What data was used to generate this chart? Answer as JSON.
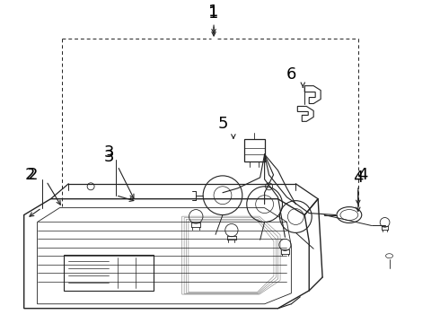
{
  "background_color": "#ffffff",
  "line_color": "#222222",
  "label_color": "#000000",
  "fig_width": 4.9,
  "fig_height": 3.6,
  "dpi": 100,
  "label_fontsize": 13
}
